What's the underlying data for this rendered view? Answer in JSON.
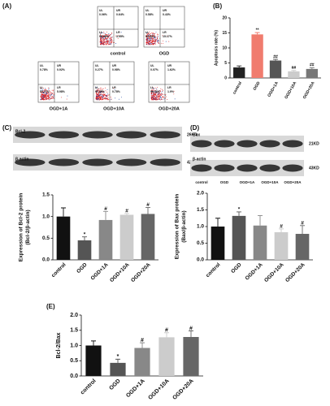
{
  "panel_labels": [
    "(A)",
    "(B)",
    "(C)",
    "(D)",
    "(E)"
  ],
  "flow_cytometry": [
    {
      "label": "control",
      "quadrants": [
        {
          "name": "UL",
          "value": "0.06%"
        },
        {
          "name": "UR",
          "value": "0.64%"
        },
        {
          "name": "LL",
          "value": "95.35%"
        },
        {
          "name": "LR",
          "value": "3.95%"
        }
      ]
    },
    {
      "label": "OGD",
      "quadrants": [
        {
          "name": "UL",
          "value": "0.58%"
        },
        {
          "name": "UR",
          "value": "0.43%"
        },
        {
          "name": "LL",
          "value": "83.83%"
        },
        {
          "name": "LR",
          "value": "15.17%"
        }
      ]
    },
    {
      "label": "OGD+1A",
      "quadrants": [
        {
          "name": "UL",
          "value": "0.78%"
        },
        {
          "name": "UR",
          "value": "0.92%"
        },
        {
          "name": "LL",
          "value": "92.17%"
        },
        {
          "name": "LR",
          "value": "5.98%"
        }
      ]
    },
    {
      "label": "OGD+10A",
      "quadrants": [
        {
          "name": "UL",
          "value": "0.27%"
        },
        {
          "name": "UR",
          "value": "0.98%"
        },
        {
          "name": "LL",
          "value": "97.55%"
        },
        {
          "name": "LR",
          "value": "0.78%"
        }
      ]
    },
    {
      "label": "OGD+20A",
      "quadrants": [
        {
          "name": "UL",
          "value": "0.07%"
        },
        {
          "name": "UR",
          "value": "1.62%"
        },
        {
          "name": "LL",
          "value": "96.43%"
        },
        {
          "name": "LR",
          "value": "1.9%"
        }
      ]
    }
  ],
  "blots": [
    {
      "rows": [
        {
          "protein": "Bcl-2",
          "size": "26KD"
        },
        {
          "protein": "β-actin",
          "size": "42KD"
        }
      ]
    },
    {
      "rows": [
        {
          "protein": "Bax",
          "size": "21KD"
        },
        {
          "protein": "β-actin",
          "size": "43KD"
        }
      ],
      "lanes": [
        "control",
        "OGD",
        "OGD+1A",
        "OGD+10A",
        "OGD+20A"
      ]
    }
  ],
  "chart_data": [
    {
      "type": "bar",
      "ylabel": [
        "Apoptosis rate (%)"
      ],
      "categories": [
        "control",
        "OGD",
        "OGD+1A",
        "OGD+10A",
        "OGD+20A"
      ],
      "values": [
        3.5,
        14.5,
        5.8,
        2.2,
        3.0
      ],
      "errors": [
        0.5,
        0.6,
        0.4,
        0.3,
        0.4
      ],
      "annotations": [
        null,
        "**",
        "##",
        "##",
        "##"
      ],
      "colors": [
        "#222222",
        "#f07c6e",
        "#555555",
        "#cccccc",
        "#777777"
      ],
      "ylim": [
        0,
        20
      ],
      "yticks": [
        0,
        5,
        10,
        15,
        20
      ]
    },
    {
      "type": "bar",
      "ylabel": [
        "Expression of Bcl-2 protein",
        "(Bcl-2/β-actin)"
      ],
      "categories": [
        "control",
        "OGD",
        "OGD+1A",
        "OGD+10A",
        "OGD+20A"
      ],
      "values": [
        1.0,
        0.45,
        0.92,
        1.04,
        1.06
      ],
      "errors": [
        0.2,
        0.08,
        0.2,
        0.03,
        0.15
      ],
      "annotations": [
        null,
        "*",
        "#",
        "#",
        "#"
      ],
      "colors": [
        "#111111",
        "#555555",
        "#888888",
        "#cccccc",
        "#666666"
      ],
      "ylim": [
        0,
        1.5
      ],
      "yticks": [
        {
          "value": 0,
          "label": "0.0"
        },
        0.5,
        {
          "value": 1,
          "label": "1.0"
        },
        1.5
      ]
    },
    {
      "type": "bar",
      "ylabel": [
        "Expression of Bax protein",
        "(Bax/β-actin)"
      ],
      "categories": [
        "control",
        "OGD",
        "OGD+1A",
        "OGD+10A",
        "OGD+20A"
      ],
      "values": [
        1.0,
        1.32,
        1.03,
        0.83,
        0.78
      ],
      "errors": [
        0.25,
        0.12,
        0.3,
        0.1,
        0.25
      ],
      "annotations": [
        null,
        "*",
        null,
        "#",
        "#"
      ],
      "colors": [
        "#111111",
        "#555555",
        "#888888",
        "#cccccc",
        "#666666"
      ],
      "ylim": [
        0,
        2
      ],
      "yticks": [
        {
          "value": 0,
          "label": "0.0"
        },
        0.5,
        {
          "value": 1,
          "label": "1.0"
        },
        1.5,
        {
          "value": 2,
          "label": "2.0"
        }
      ]
    },
    {
      "type": "bar",
      "ylabel": [
        "Bcl-2/Bax"
      ],
      "categories": [
        "control",
        "OGD",
        "OGD+1A",
        "OGD+10A",
        "OGD+20A"
      ],
      "values": [
        1.0,
        0.43,
        0.92,
        1.27,
        1.28
      ],
      "errors": [
        0.15,
        0.12,
        0.17,
        0.15,
        0.2
      ],
      "annotations": [
        null,
        "*",
        "#",
        "#",
        "#"
      ],
      "colors": [
        "#111111",
        "#555555",
        "#888888",
        "#cccccc",
        "#666666"
      ],
      "ylim": [
        0,
        2
      ],
      "yticks": [
        {
          "value": 0,
          "label": "0.0"
        },
        0.5,
        {
          "value": 1,
          "label": "1.0"
        },
        1.5,
        {
          "value": 2,
          "label": "2.0"
        }
      ]
    }
  ]
}
